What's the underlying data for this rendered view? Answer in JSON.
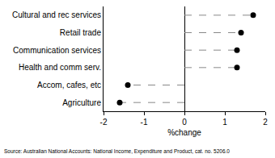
{
  "chart_data": {
    "type": "dot",
    "orientation": "horizontal",
    "categories": [
      "Cultural and rec services",
      "Retail trade",
      "Communication services",
      "Health and comm serv.",
      "Accom, cafes, etc",
      "Agriculture"
    ],
    "values": [
      1.7,
      1.4,
      1.3,
      1.3,
      -1.4,
      -1.6
    ],
    "x_label": "%change",
    "xlim": [
      -2,
      2
    ],
    "xticks": [
      -2,
      -1,
      0,
      1,
      2
    ],
    "color": "#000000",
    "marker": "circle",
    "line_style": "dash",
    "grid": false,
    "annotations": [
      "Source: Australian National Accounts: National Income, Expenditure and Product, cat. no. 5206.0"
    ]
  }
}
